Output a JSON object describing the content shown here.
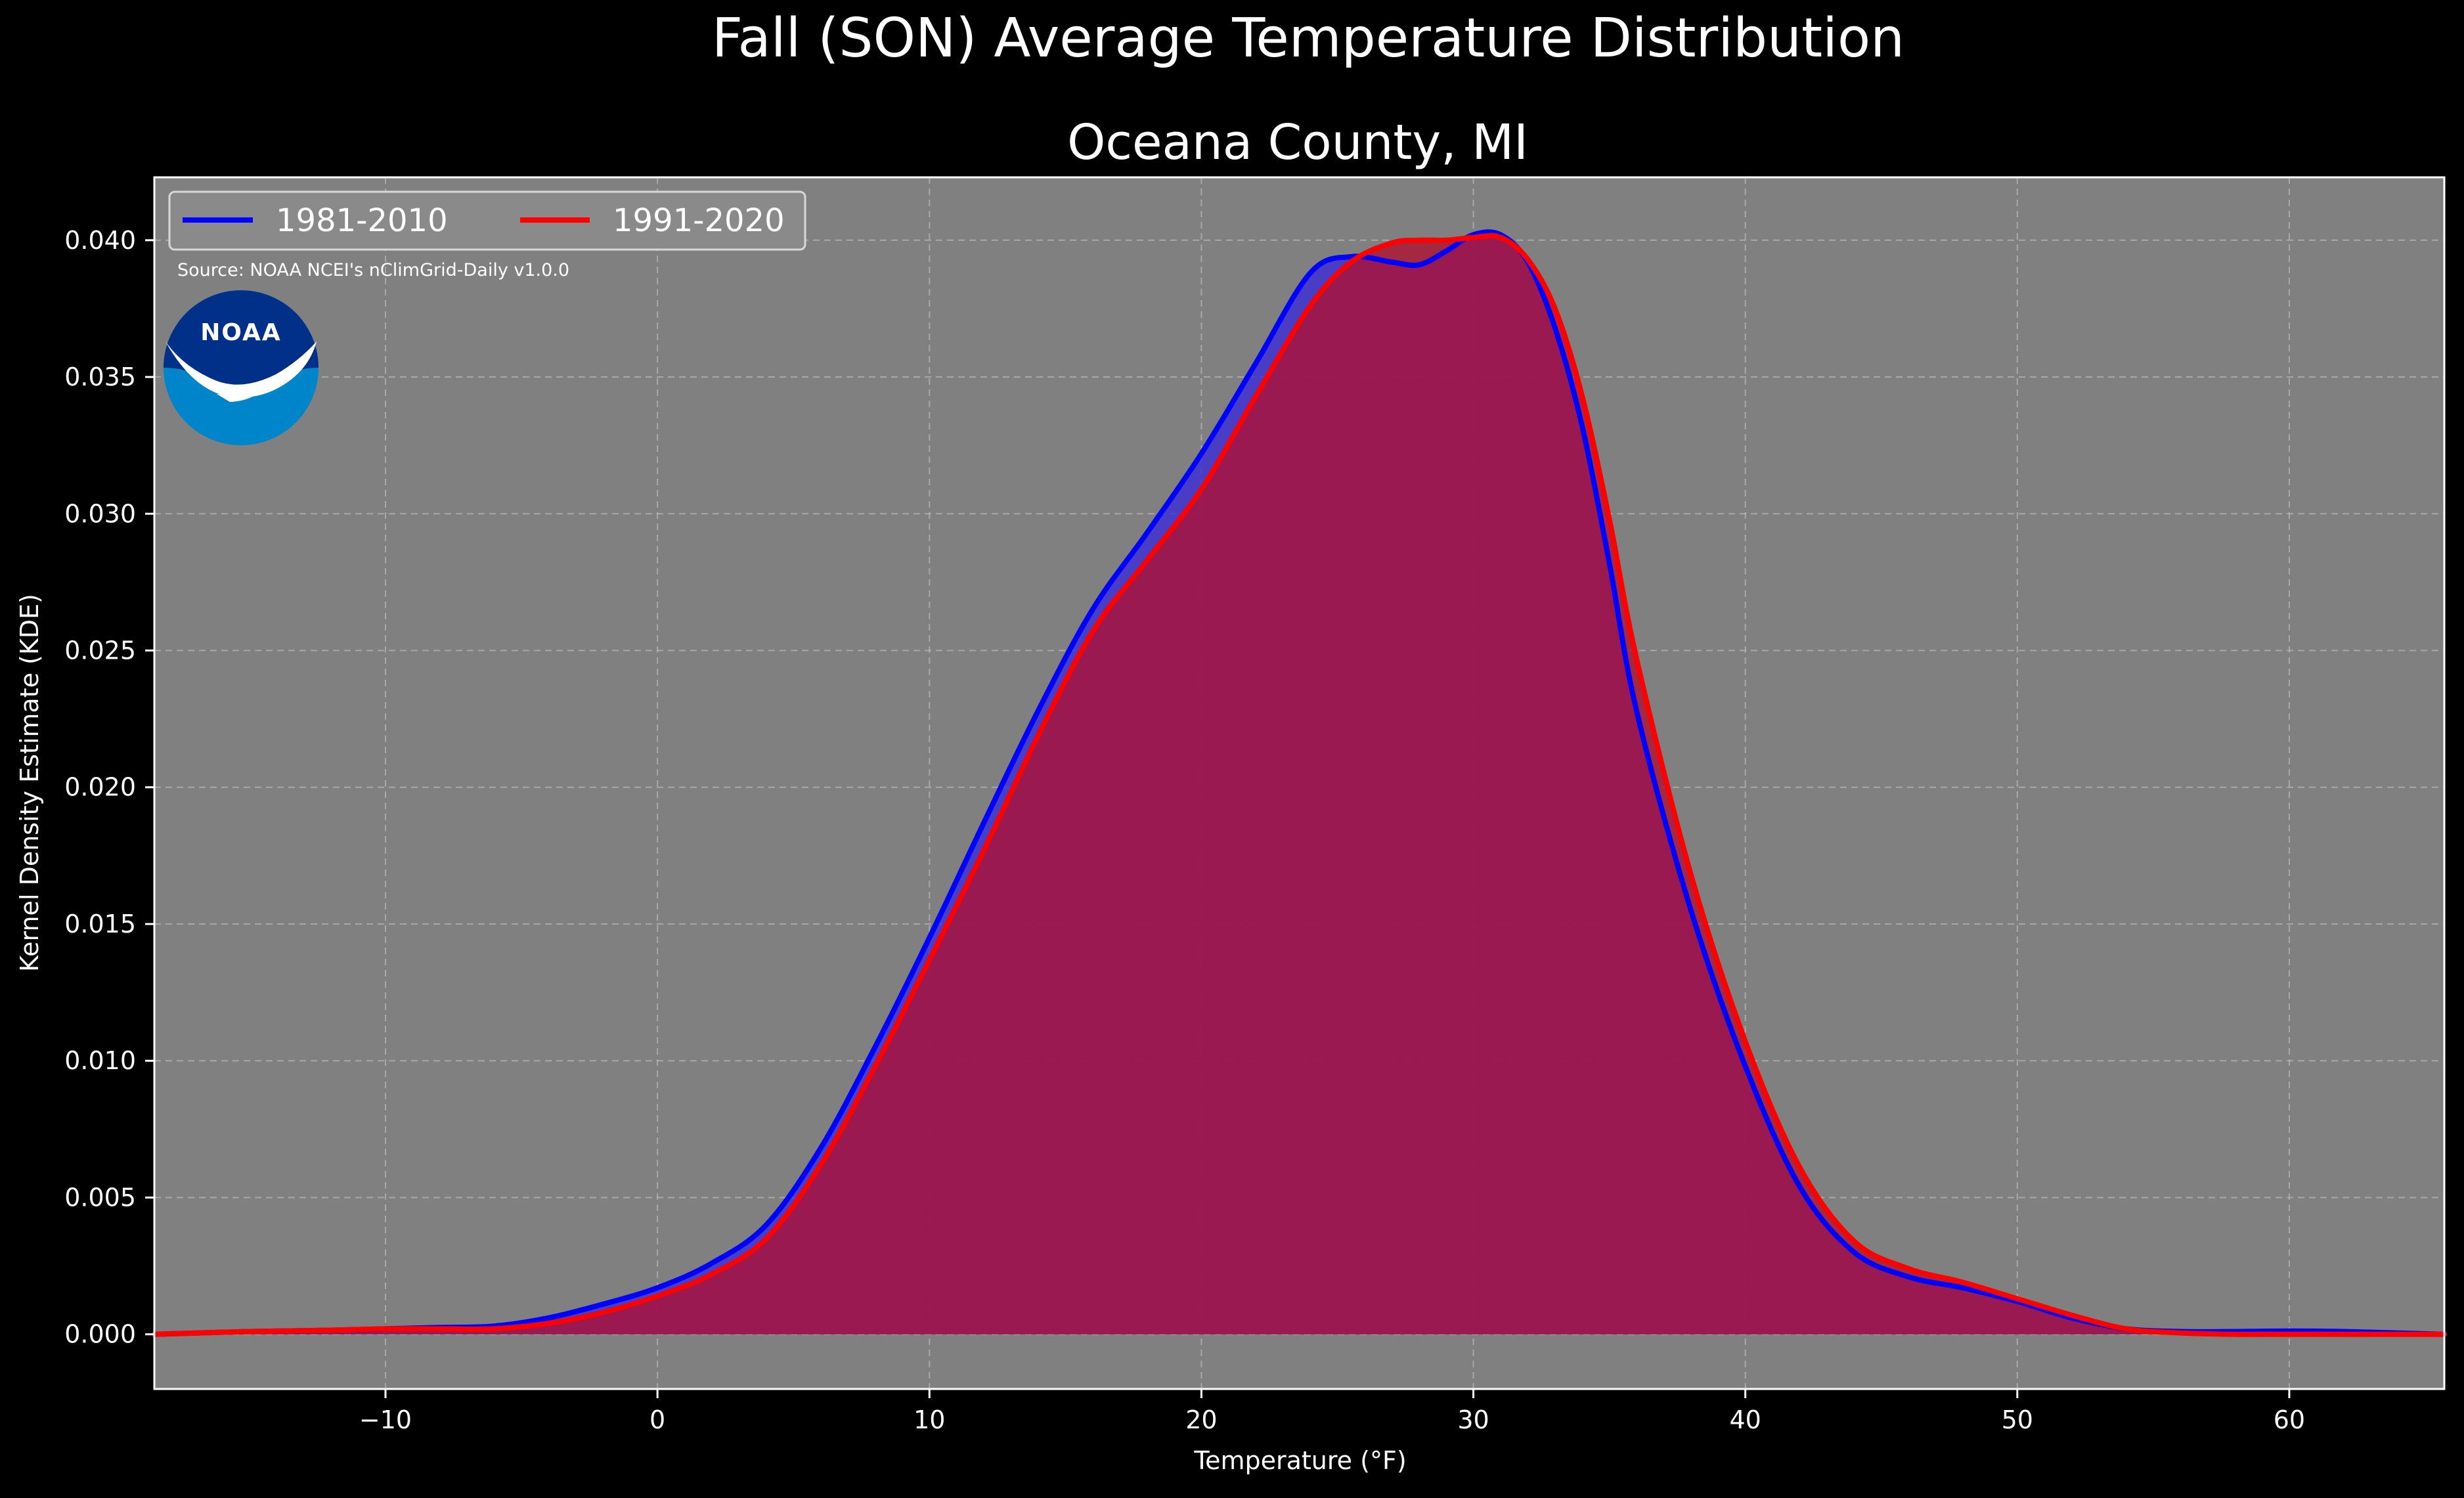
{
  "colors": {
    "background": "#000000",
    "plot_bg": "#808080",
    "grid": "#c8c8c8",
    "text": "#ffffff",
    "series_1981": "#0000ff",
    "series_1991": "#ff0000",
    "fill_1981": "#3a2ad8",
    "fill_1991": "#b01030",
    "noaa_outer": "#0085ca",
    "noaa_inner": "#003087"
  },
  "logo": {
    "name": "noaa-logo",
    "text": "NOAA"
  },
  "source_note": "Source: NOAA NCEI's nClimGrid-Daily v1.0.0",
  "chart_data": {
    "type": "area",
    "title": "Fall (SON) Average Temperature Distribution",
    "subtitle": "Oceana County, MI",
    "xlabel": "Temperature (°F)",
    "ylabel": "Kernel Density Estimate (KDE)",
    "xlim": [
      -18.5,
      65.7
    ],
    "ylim": [
      -0.002,
      0.0423
    ],
    "xticks": [
      -10,
      0,
      10,
      20,
      30,
      40,
      50,
      60
    ],
    "xtick_labels": [
      "−10",
      "0",
      "10",
      "20",
      "30",
      "40",
      "50",
      "60"
    ],
    "yticks": [
      0.0,
      0.005,
      0.01,
      0.015,
      0.02,
      0.025,
      0.03,
      0.035,
      0.04
    ],
    "ytick_labels": [
      "0.000",
      "0.005",
      "0.010",
      "0.015",
      "0.020",
      "0.025",
      "0.030",
      "0.035",
      "0.040"
    ],
    "grid": true,
    "legend_position": "top-left",
    "series": [
      {
        "name": "1981-2010",
        "color": "#0000ff",
        "x": [
          -18.5,
          -15,
          -12,
          -10,
          -8,
          -6,
          -4,
          -2,
          0,
          2,
          4,
          6,
          8,
          10,
          12,
          14,
          16,
          18,
          20,
          22,
          24,
          25.5,
          27,
          28,
          29,
          30,
          31,
          32,
          33,
          34,
          35,
          36,
          38,
          40,
          42,
          44,
          46,
          48,
          50,
          52,
          54,
          56,
          58,
          60,
          62,
          65.7
        ],
        "y": [
          0.0,
          0.0001,
          0.00015,
          0.0002,
          0.00025,
          0.0003,
          0.0006,
          0.0011,
          0.0017,
          0.0026,
          0.004,
          0.0068,
          0.0105,
          0.0145,
          0.0187,
          0.0228,
          0.0265,
          0.0293,
          0.0322,
          0.0355,
          0.0388,
          0.0394,
          0.0392,
          0.0391,
          0.0396,
          0.0402,
          0.0402,
          0.0392,
          0.0368,
          0.0332,
          0.0282,
          0.0228,
          0.0155,
          0.0098,
          0.0054,
          0.003,
          0.0021,
          0.0017,
          0.0012,
          0.0006,
          0.0002,
          0.0001,
          0.0001,
          0.00012,
          0.0001,
          0.0
        ]
      },
      {
        "name": "1991-2020",
        "color": "#ff0000",
        "x": [
          -18.5,
          -15,
          -12,
          -10,
          -8,
          -6,
          -4,
          -2,
          0,
          2,
          4,
          6,
          8,
          10,
          12,
          14,
          16,
          18,
          20,
          22,
          24,
          25.5,
          27,
          28,
          29,
          30,
          31,
          32,
          33,
          34,
          35,
          36,
          38,
          40,
          42,
          44,
          46,
          48,
          50,
          52,
          54,
          56,
          58,
          60,
          62,
          65.7
        ],
        "y": [
          0.0,
          0.0001,
          0.00015,
          0.0002,
          0.0002,
          0.0002,
          0.0004,
          0.0008,
          0.0014,
          0.0022,
          0.0035,
          0.0062,
          0.0098,
          0.0137,
          0.0177,
          0.0219,
          0.0257,
          0.0283,
          0.0309,
          0.0343,
          0.0376,
          0.0392,
          0.0399,
          0.04,
          0.04,
          0.0401,
          0.0401,
          0.0393,
          0.0375,
          0.0343,
          0.0298,
          0.0247,
          0.0168,
          0.0107,
          0.0061,
          0.0034,
          0.0024,
          0.0019,
          0.0013,
          0.0007,
          0.0002,
          5e-05,
          0.0,
          0.0,
          0.0,
          0.0
        ]
      }
    ]
  }
}
